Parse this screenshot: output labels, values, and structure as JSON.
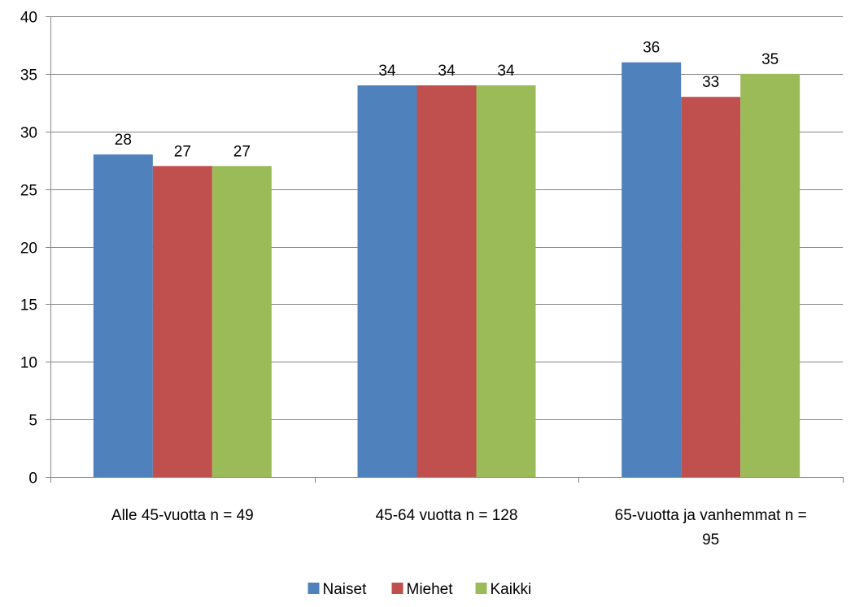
{
  "chart_data": {
    "type": "bar",
    "categories": [
      [
        "Alle 45-vuotta n = 49"
      ],
      [
        "45-64 vuotta n = 128"
      ],
      [
        "65-vuotta ja vanhemmat  n =",
        "95"
      ]
    ],
    "series": [
      {
        "name": "Naiset",
        "color": "#4F81BD",
        "values": [
          28,
          34,
          36
        ]
      },
      {
        "name": "Miehet",
        "color": "#C0504D",
        "values": [
          27,
          34,
          33
        ]
      },
      {
        "name": "Kaikki",
        "color": "#9BBB59",
        "values": [
          27,
          34,
          35
        ]
      }
    ],
    "ylim": [
      0,
      40
    ],
    "yticks": [
      0,
      5,
      10,
      15,
      20,
      25,
      30,
      35,
      40
    ],
    "grid": true,
    "legend_position": "bottom",
    "data_labels": true
  }
}
